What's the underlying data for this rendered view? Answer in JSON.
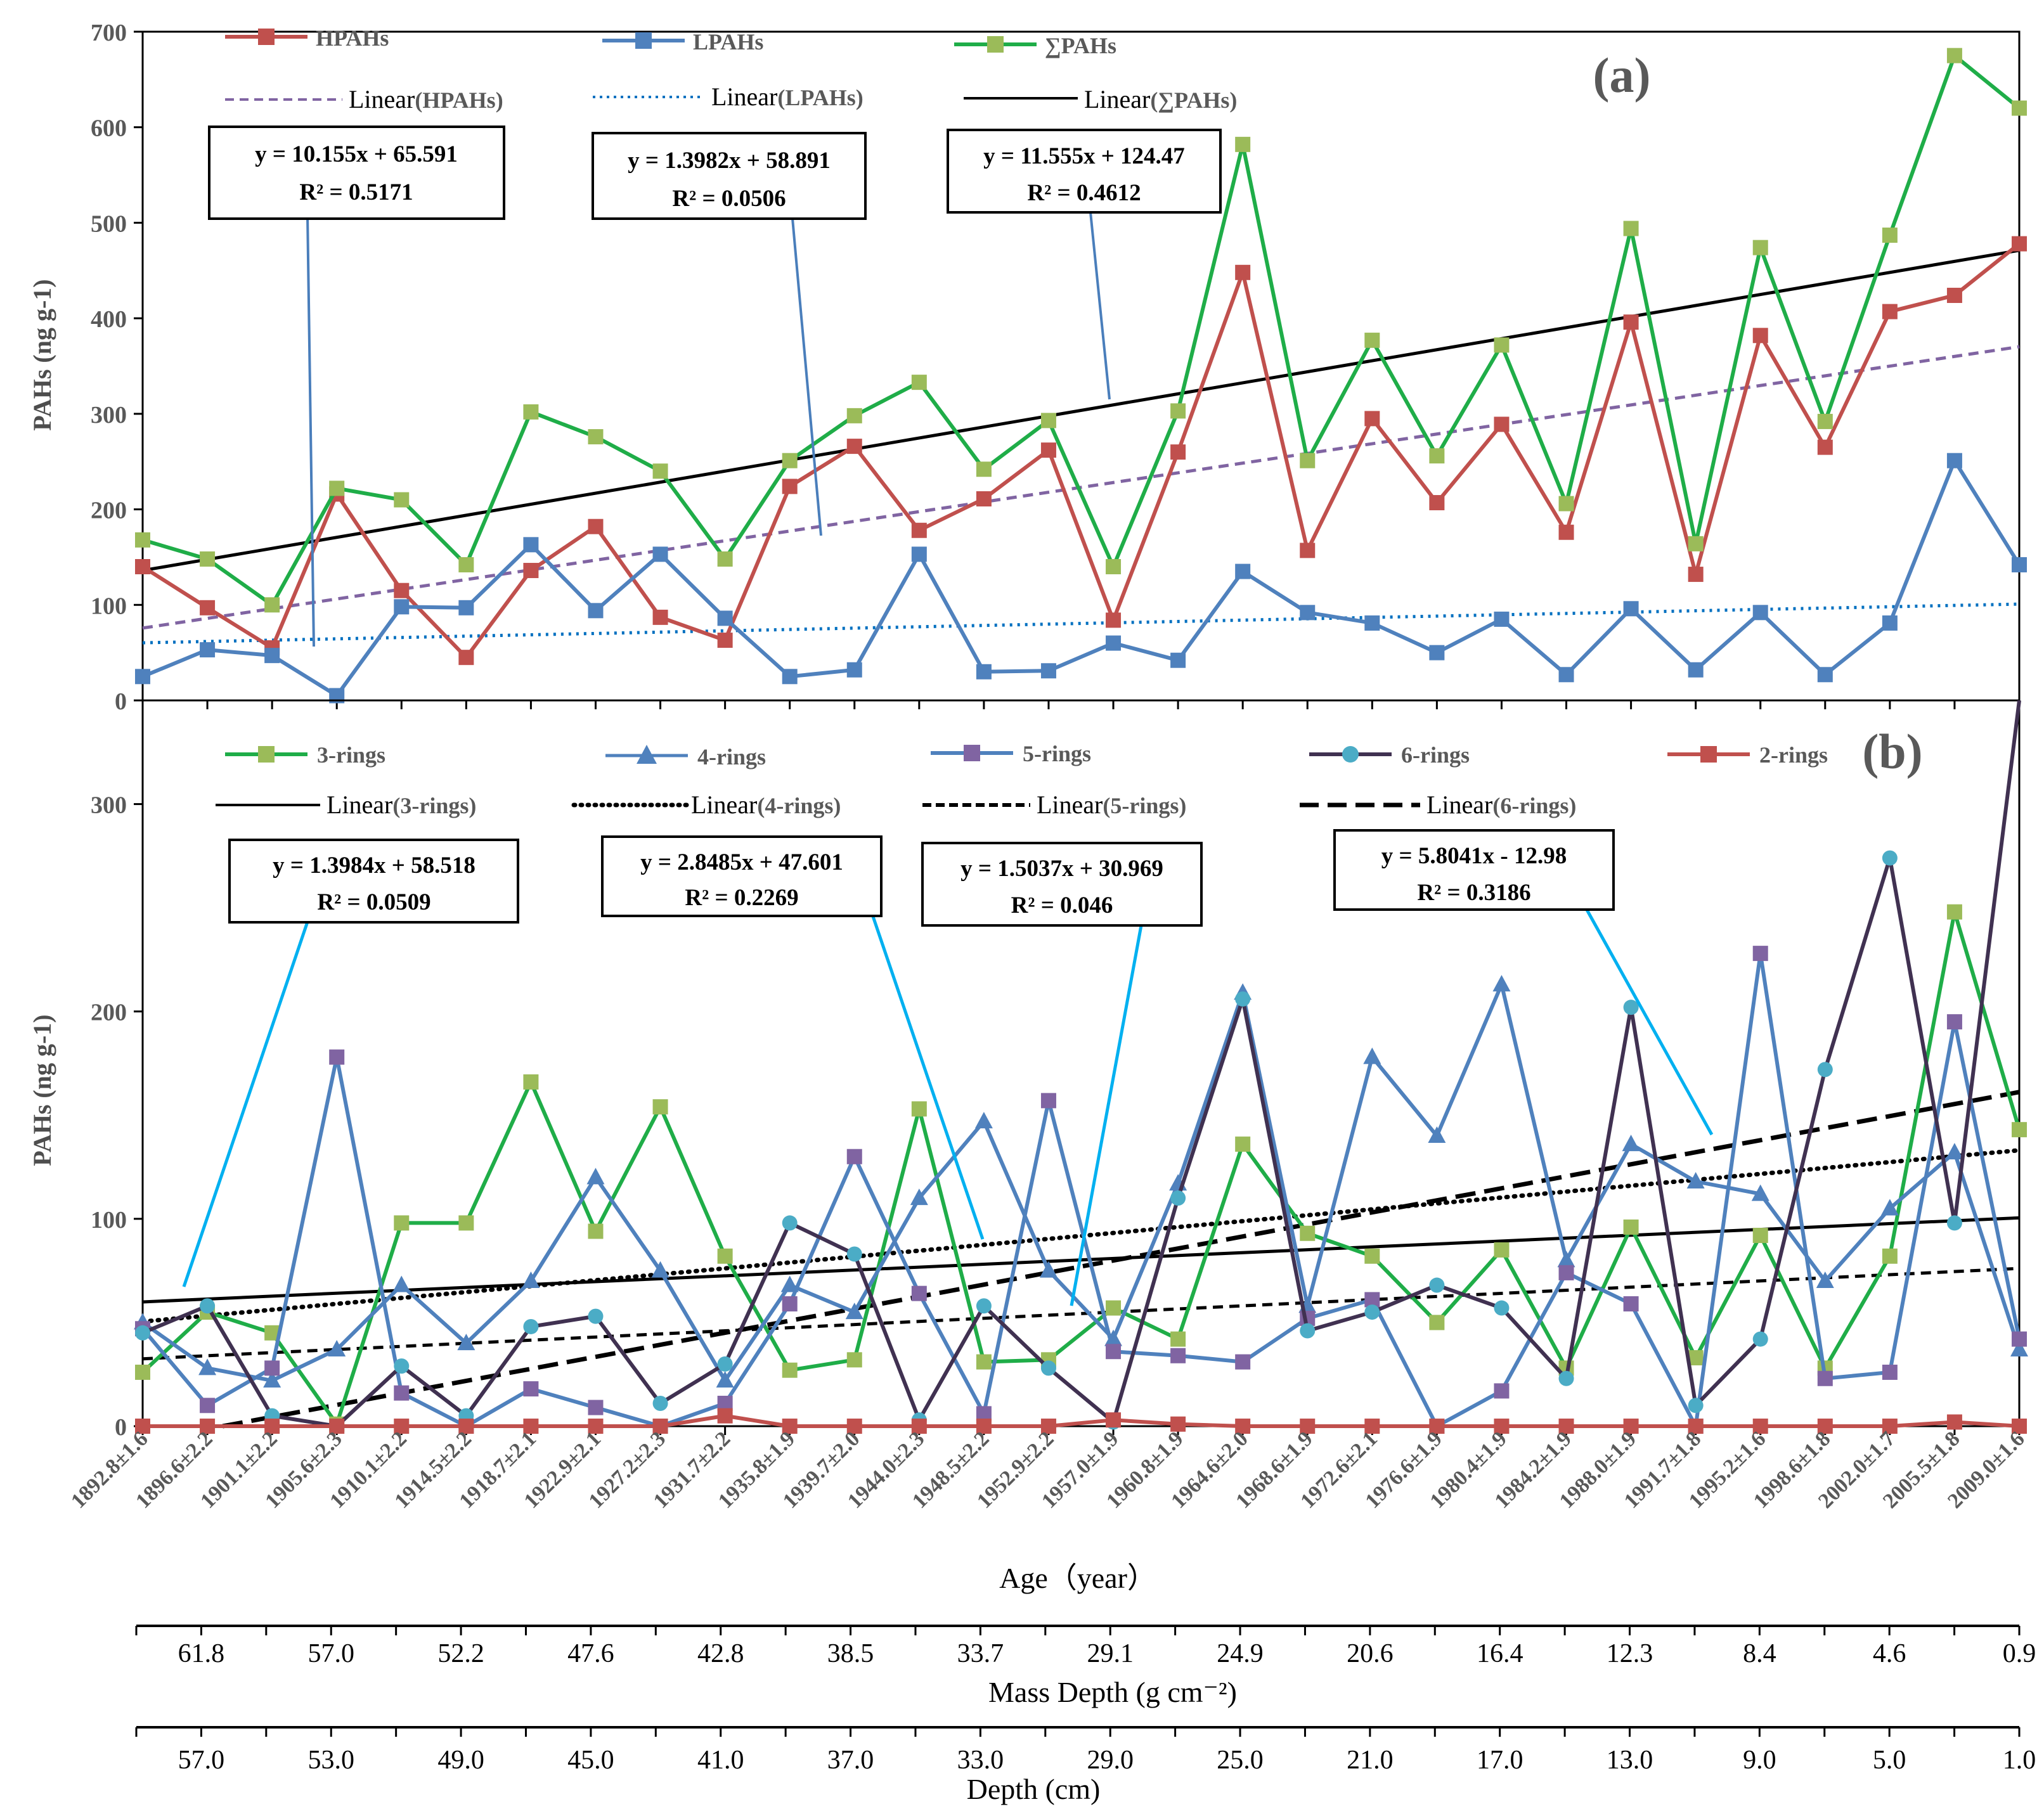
{
  "chart_data": [
    {
      "type": "line",
      "panel_label": "(a)",
      "ylabel": "PAHs (ng g-1)",
      "ylim": [
        0,
        700
      ],
      "yticks": [
        0,
        100,
        200,
        300,
        400,
        500,
        600,
        700
      ],
      "x": [
        1,
        2,
        3,
        4,
        5,
        6,
        7,
        8,
        9,
        10,
        11,
        12,
        13,
        14,
        15,
        16,
        17,
        18,
        19,
        20,
        21,
        22,
        23,
        24,
        25,
        26,
        27,
        28,
        29,
        30
      ],
      "series": [
        {
          "name": "HPAHs",
          "color": "#c0504d",
          "marker": "square",
          "marker_color": "#c0504d",
          "values": [
            140,
            97,
            55,
            216,
            115,
            45,
            136,
            182,
            87,
            63,
            224,
            266,
            178,
            211,
            262,
            84,
            260,
            448,
            157,
            295,
            207,
            289,
            176,
            396,
            132,
            382,
            265,
            407,
            424,
            478
          ]
        },
        {
          "name": "LPAHs",
          "color": "#4f81bd",
          "marker": "square",
          "marker_color": "#4f81bd",
          "values": [
            25,
            53,
            47,
            5,
            98,
            97,
            163,
            94,
            153,
            86,
            25,
            32,
            153,
            30,
            31,
            60,
            42,
            135,
            92,
            81,
            50,
            85,
            27,
            96,
            32,
            92,
            27,
            81,
            251,
            142
          ]
        },
        {
          "name": "∑PAHs",
          "color": "#1fad48",
          "marker": "square",
          "marker_color": "#9bbb59",
          "values": [
            168,
            148,
            100,
            222,
            210,
            142,
            302,
            276,
            240,
            148,
            251,
            298,
            333,
            242,
            293,
            140,
            303,
            582,
            251,
            377,
            256,
            372,
            206,
            494,
            164,
            474,
            292,
            487,
            675,
            620
          ]
        }
      ],
      "trendlines": [
        {
          "label_prefix": "Linear",
          "label_suffix": "(HPAHs)",
          "slope": 10.155,
          "intercept": 65.591,
          "color": "#8064a2",
          "style": "dash"
        },
        {
          "label_prefix": "Linear",
          "label_suffix": "(LPAHs)",
          "slope": 1.3982,
          "intercept": 58.891,
          "color": "#0070c0",
          "style": "dot"
        },
        {
          "label_prefix": "Linear",
          "label_suffix": "(∑PAHs)",
          "slope": 11.555,
          "intercept": 124.47,
          "color": "#000000",
          "style": "solid"
        }
      ],
      "equations": [
        {
          "equation": "y = 10.155x + 65.591",
          "r2": "R² = 0.5171"
        },
        {
          "equation": "y = 1.3982x + 58.891",
          "r2": "R² = 0.0506"
        },
        {
          "equation": "y = 11.555x + 124.47",
          "r2": "R² = 0.4612"
        }
      ]
    },
    {
      "type": "line",
      "panel_label": "(b)",
      "ylabel": "PAHs (ng g-1)",
      "ylim": [
        0,
        350
      ],
      "yticks": [
        0,
        100,
        200,
        300
      ],
      "x": [
        1,
        2,
        3,
        4,
        5,
        6,
        7,
        8,
        9,
        10,
        11,
        12,
        13,
        14,
        15,
        16,
        17,
        18,
        19,
        20,
        21,
        22,
        23,
        24,
        25,
        26,
        27,
        28,
        29,
        30
      ],
      "series": [
        {
          "name": "3-rings",
          "color": "#1fad48",
          "marker": "square",
          "marker_color": "#9bbb59",
          "values": [
            26,
            55,
            45,
            1,
            98,
            98,
            166,
            94,
            154,
            82,
            27,
            32,
            153,
            31,
            32,
            57,
            42,
            136,
            93,
            82,
            50,
            85,
            28,
            96,
            33,
            92,
            28,
            82,
            248,
            143
          ]
        },
        {
          "name": "4-rings",
          "color": "#4f81bd",
          "marker": "triangle",
          "marker_color": "#4f81bd",
          "values": [
            50,
            28,
            22,
            37,
            68,
            40,
            70,
            120,
            75,
            22,
            68,
            55,
            110,
            147,
            75,
            42,
            117,
            209,
            58,
            178,
            140,
            213,
            80,
            136,
            118,
            112,
            70,
            105,
            132,
            37
          ]
        },
        {
          "name": "5-rings",
          "color": "#4f81bd",
          "marker": "square",
          "marker_color": "#8064a2",
          "values": [
            47,
            10,
            28,
            178,
            16,
            0,
            18,
            9,
            0,
            11,
            59,
            130,
            64,
            6,
            157,
            36,
            34,
            31,
            52,
            61,
            0,
            17,
            74,
            59,
            0,
            228,
            23,
            26,
            195,
            42
          ]
        },
        {
          "name": "6-rings",
          "color": "#403151",
          "marker": "circle",
          "marker_color": "#4bacc6",
          "values": [
            45,
            58,
            5,
            0,
            29,
            5,
            48,
            53,
            11,
            30,
            98,
            83,
            3,
            58,
            28,
            2,
            110,
            206,
            46,
            55,
            68,
            57,
            23,
            202,
            10,
            42,
            172,
            274,
            98,
            350
          ]
        },
        {
          "name": "2-rings",
          "color": "#c0504d",
          "marker": "square",
          "marker_color": "#c0504d",
          "values": [
            0,
            0,
            0,
            0,
            0,
            0,
            0,
            0,
            0,
            5,
            0,
            0,
            0,
            0,
            0,
            3,
            1,
            0,
            0,
            0,
            0,
            0,
            0,
            0,
            0,
            0,
            0,
            0,
            2,
            0
          ]
        }
      ],
      "trendlines": [
        {
          "label_prefix": "Linear",
          "label_suffix": "(3-rings)",
          "slope": 1.3984,
          "intercept": 58.518,
          "color": "#000000",
          "style": "solid"
        },
        {
          "label_prefix": "Linear",
          "label_suffix": "(4-rings)",
          "slope": 2.8485,
          "intercept": 47.601,
          "color": "#000000",
          "style": "dot"
        },
        {
          "label_prefix": "Linear",
          "label_suffix": "(5-rings)",
          "slope": 1.5037,
          "intercept": 30.969,
          "color": "#000000",
          "style": "dash"
        },
        {
          "label_prefix": "Linear",
          "label_suffix": "(6-rings)",
          "slope": 5.8041,
          "intercept": -12.98,
          "color": "#000000",
          "style": "longdash"
        }
      ],
      "equations": [
        {
          "equation": "y = 1.3984x + 58.518",
          "r2": "R² = 0.0509"
        },
        {
          "equation": "y = 2.8485x + 47.601",
          "r2": "R² = 0.2269"
        },
        {
          "equation": "y = 1.5037x + 30.969",
          "r2": "R² = 0.046"
        },
        {
          "equation": "y = 5.8041x - 12.98",
          "r2": "R² = 0.3186"
        }
      ]
    }
  ],
  "axes": {
    "age_title": "Age（year）",
    "age_labels": [
      "1892.8±1.6",
      "1896.6±2.2",
      "1901.1±2.2",
      "1905.6±2.3",
      "1910.1±2.2",
      "1914.5±2.2",
      "1918.7±2.1",
      "1922.9±2.1",
      "1927.2±2.3",
      "1931.7±2.2",
      "1935.8±1.9",
      "1939.7±2.0",
      "1944.0±2.3",
      "1948.5±2.2",
      "1952.9±2.2",
      "1957.0±1.9",
      "1960.8±1.9",
      "1964.6±2.0",
      "1968.6±1.9",
      "1972.6±2.1",
      "1976.6±1.9",
      "1980.4±1.9",
      "1984.2±1.9",
      "1988.0±1.9",
      "1991.7±1.8",
      "1995.2±1.6",
      "1998.6±1.8",
      "2002.0±1.7",
      "2005.5±1.8",
      "2009.0±1.6"
    ],
    "mass_depth_title": "Mass Depth (g cm⁻²)",
    "mass_depth_labels": [
      "61.8",
      "57.0",
      "52.2",
      "47.6",
      "42.8",
      "38.5",
      "33.7",
      "29.1",
      "24.9",
      "20.6",
      "16.4",
      "12.3",
      "8.4",
      "4.6",
      "0.9"
    ],
    "depth_title": "Depth (cm)",
    "depth_labels": [
      "57.0",
      "53.0",
      "49.0",
      "45.0",
      "41.0",
      "37.0",
      "33.0",
      "29.0",
      "25.0",
      "21.0",
      "17.0",
      "13.0",
      "9.0",
      "5.0",
      "1.0"
    ]
  }
}
